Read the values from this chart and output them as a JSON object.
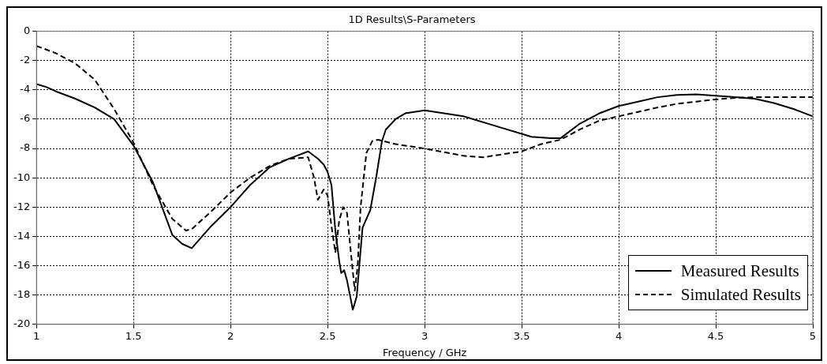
{
  "chart_data": {
    "type": "line",
    "title": "1D Results\\S-Parameters",
    "xlabel": "Frequency / GHz",
    "xlim": [
      1,
      5
    ],
    "xticks": [
      1,
      1.5,
      2,
      2.5,
      3,
      3.5,
      4,
      4.5,
      5
    ],
    "ylim": [
      -20,
      0
    ],
    "yticks": [
      -20,
      -18,
      -16,
      -14,
      -12,
      -10,
      -8,
      -6,
      -4,
      -2,
      0
    ],
    "grid": true,
    "legend": "bottom right",
    "marker": "none",
    "series": [
      {
        "name": "Measured Results",
        "color": "#000000",
        "line_style": "solid",
        "x": [
          1,
          1.05,
          1.1,
          1.2,
          1.3,
          1.4,
          1.5,
          1.6,
          1.7,
          1.75,
          1.8,
          1.9,
          2,
          2.1,
          2.2,
          2.3,
          2.4,
          2.45,
          2.48,
          2.5,
          2.52,
          2.54,
          2.56,
          2.57,
          2.585,
          2.6,
          2.63,
          2.65,
          2.68,
          2.72,
          2.75,
          2.78,
          2.8,
          2.85,
          2.9,
          3,
          3.2,
          3.4,
          3.5,
          3.55,
          3.65,
          3.7,
          3.8,
          3.9,
          4,
          4.1,
          4.2,
          4.3,
          4.4,
          4.5,
          4.6,
          4.7,
          4.8,
          4.9,
          5
        ],
        "values": [
          -3.6,
          -3.8,
          -4.1,
          -4.6,
          -5.2,
          -6.0,
          -7.8,
          -10.3,
          -13.9,
          -14.5,
          -14.8,
          -13.3,
          -12.0,
          -10.5,
          -9.3,
          -8.7,
          -8.2,
          -8.7,
          -9.1,
          -9.6,
          -10.5,
          -13.6,
          -15.7,
          -16.5,
          -16.3,
          -17.0,
          -19.0,
          -18.1,
          -13.4,
          -12.2,
          -10.0,
          -7.5,
          -6.7,
          -6.0,
          -5.6,
          -5.4,
          -5.8,
          -6.6,
          -7.0,
          -7.2,
          -7.3,
          -7.3,
          -6.3,
          -5.6,
          -5.1,
          -4.8,
          -4.5,
          -4.35,
          -4.3,
          -4.4,
          -4.5,
          -4.6,
          -4.9,
          -5.3,
          -5.8
        ]
      },
      {
        "name": "Simulated Results",
        "color": "#000000",
        "line_style": "dashed",
        "x": [
          1,
          1.1,
          1.2,
          1.3,
          1.4,
          1.5,
          1.6,
          1.7,
          1.77,
          1.8,
          1.9,
          2,
          2.1,
          2.2,
          2.3,
          2.4,
          2.43,
          2.45,
          2.48,
          2.5,
          2.52,
          2.54,
          2.56,
          2.58,
          2.6,
          2.62,
          2.64,
          2.655,
          2.67,
          2.7,
          2.73,
          2.76,
          2.85,
          3,
          3.2,
          3.3,
          3.4,
          3.5,
          3.6,
          3.7,
          3.8,
          3.9,
          4,
          4.1,
          4.2,
          4.3,
          4.4,
          4.5,
          4.6,
          4.7,
          4.8,
          5
        ],
        "values": [
          -1.0,
          -1.5,
          -2.2,
          -3.3,
          -5.3,
          -7.6,
          -10.5,
          -12.8,
          -13.6,
          -13.5,
          -12.3,
          -11.0,
          -10.0,
          -9.2,
          -8.7,
          -8.6,
          -10.0,
          -11.5,
          -10.8,
          -11.2,
          -13.3,
          -15.1,
          -12.9,
          -12.0,
          -12.4,
          -15.1,
          -17.7,
          -16.0,
          -12.0,
          -8.3,
          -7.5,
          -7.4,
          -7.7,
          -8.0,
          -8.5,
          -8.6,
          -8.4,
          -8.2,
          -7.7,
          -7.4,
          -6.7,
          -6.1,
          -5.8,
          -5.5,
          -5.2,
          -4.95,
          -4.8,
          -4.65,
          -4.55,
          -4.5,
          -4.5,
          -4.5
        ]
      }
    ]
  }
}
